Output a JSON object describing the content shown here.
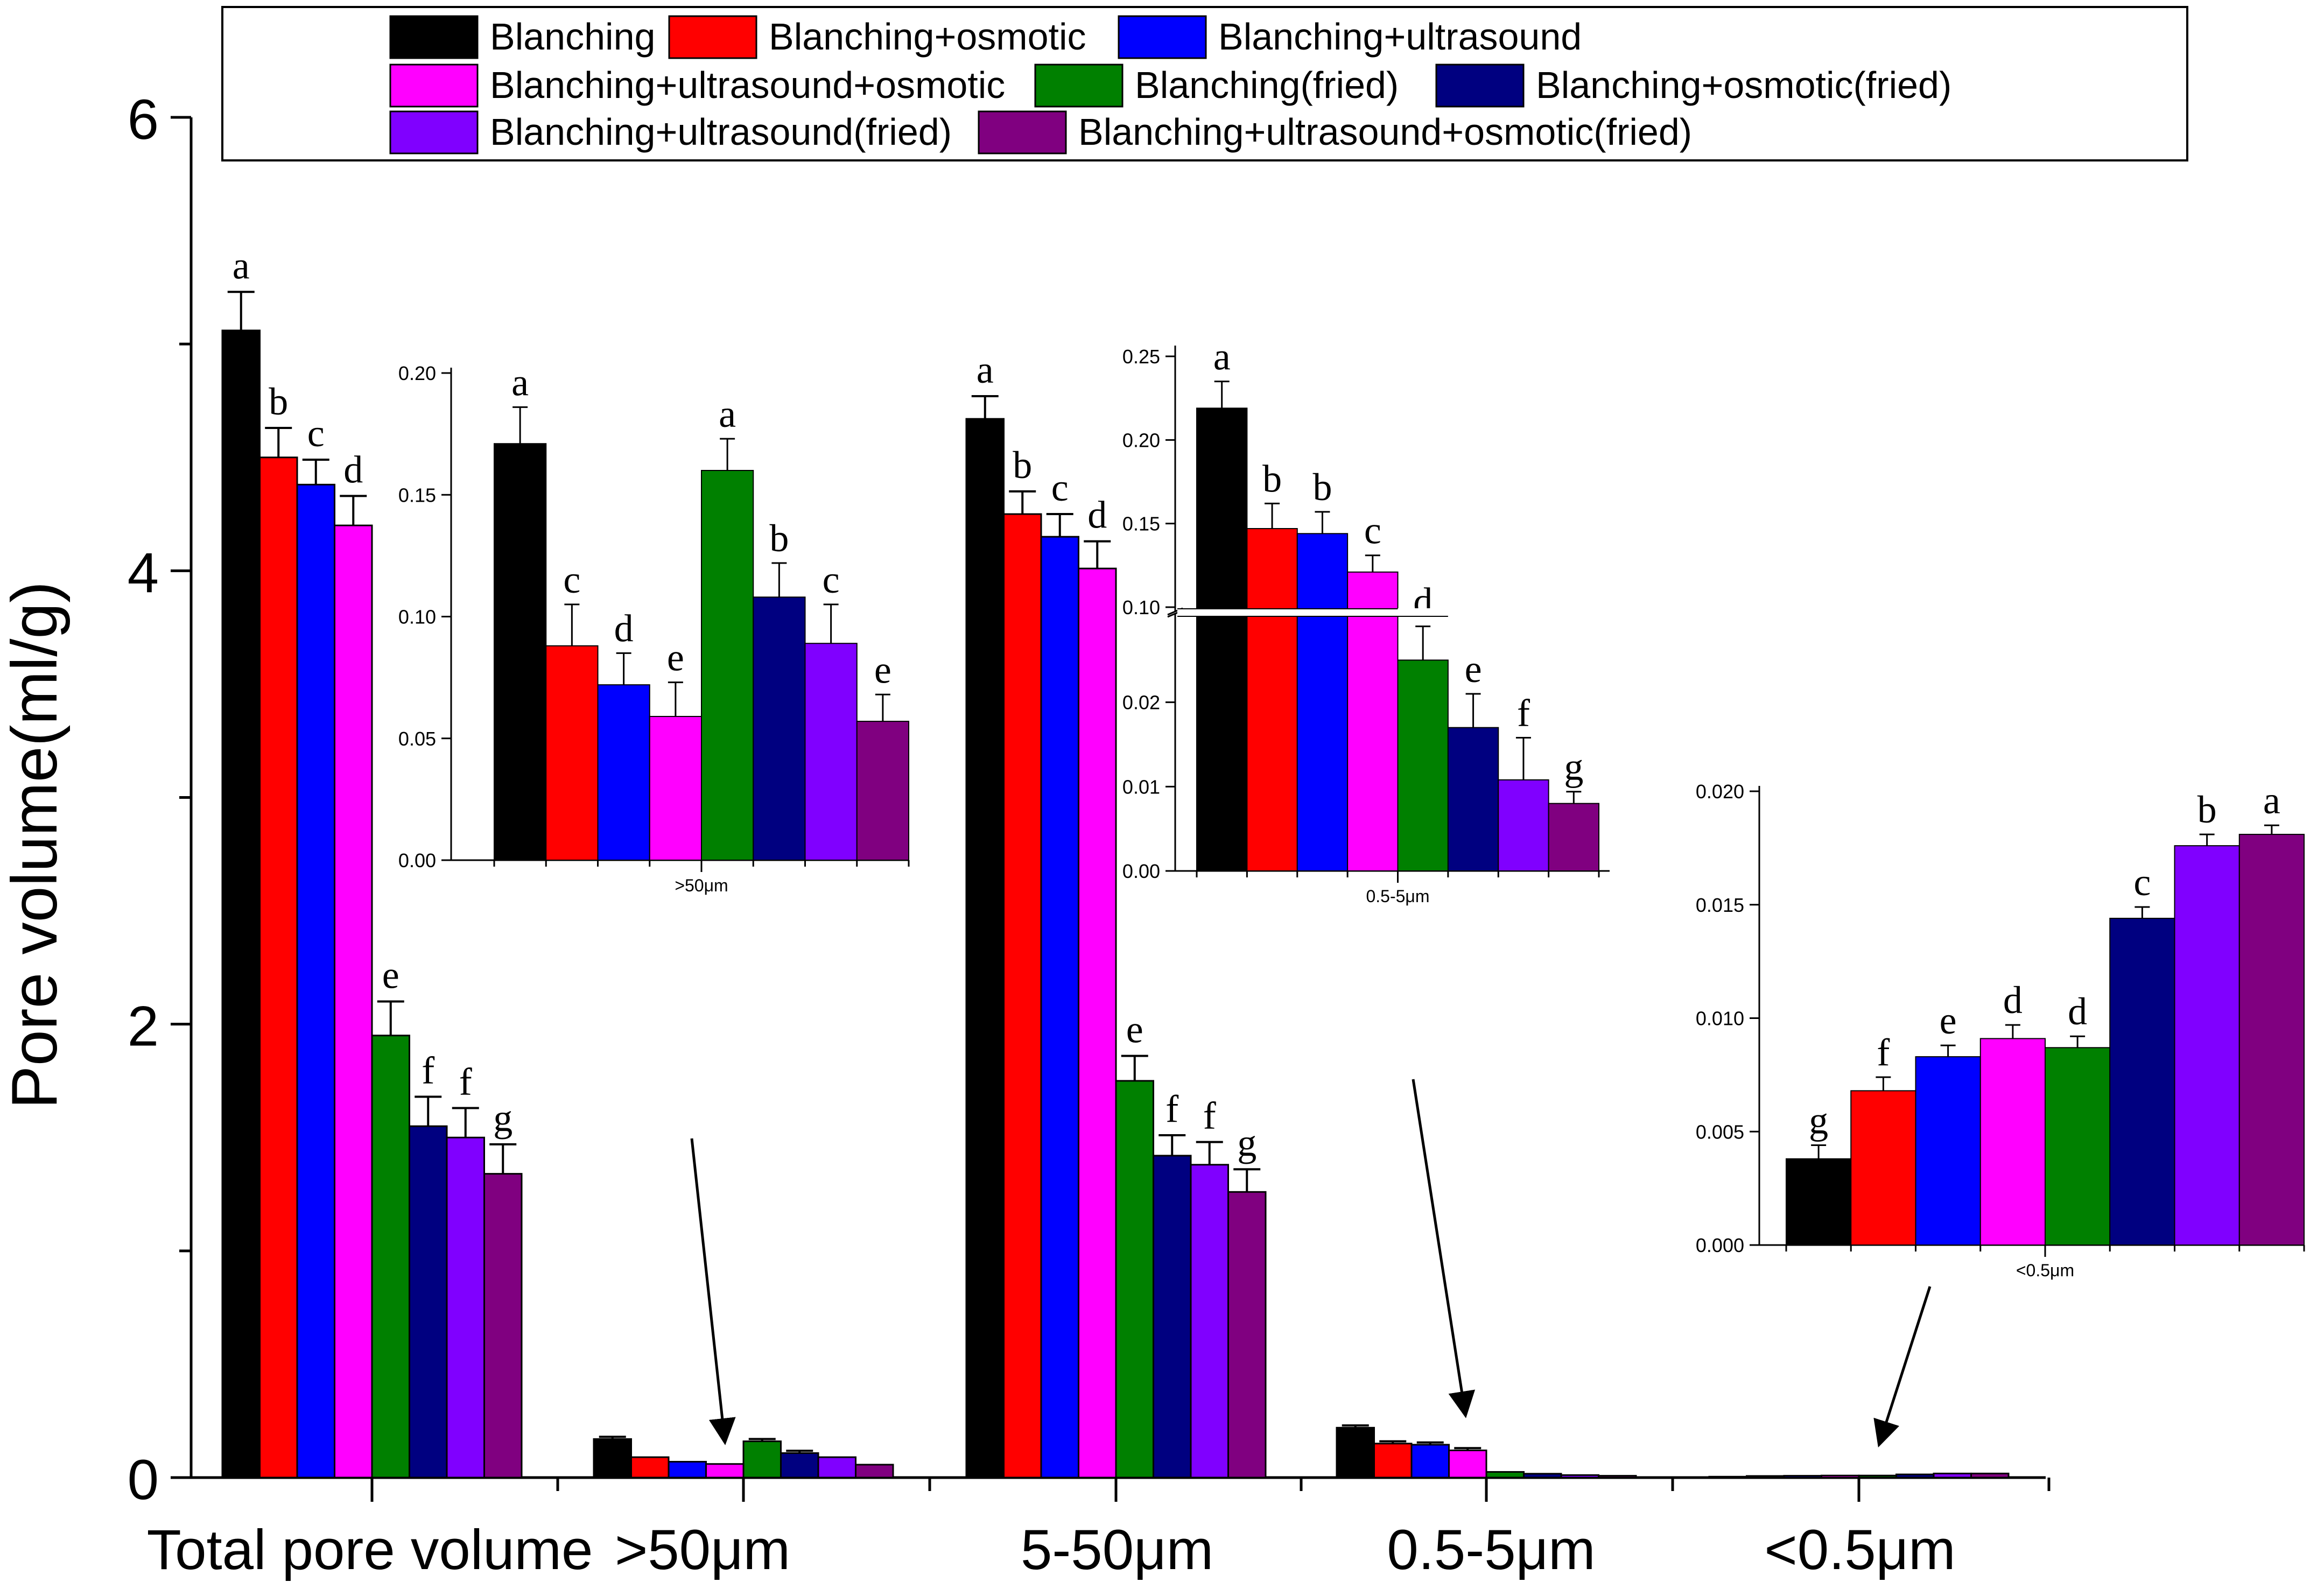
{
  "chart_data": {
    "type": "bar",
    "ylabel": "Pore volume(ml/g)",
    "xlabel": "",
    "ylim": [
      0,
      6
    ],
    "y_ticks": [
      "0",
      "2",
      "4",
      "6"
    ],
    "categories": [
      "Total pore volume",
      ">50μm",
      "5-50μm",
      "0.5-5μm",
      "<0.5μm"
    ],
    "legend": {
      "position": "top",
      "entries": [
        {
          "name": "Blanching",
          "color": "#000000"
        },
        {
          "name": "Blanching+osmotic",
          "color": "#ff0000"
        },
        {
          "name": "Blanching+ultrasound",
          "color": "#0000ff"
        },
        {
          "name": "Blanching+ultrasound+osmotic",
          "color": "#ff00ff"
        },
        {
          "name": "Blanching(fried)",
          "color": "#008000"
        },
        {
          "name": "Blanching+osmotic(fried)",
          "color": "#000080"
        },
        {
          "name": "Blanching+ultrasound(fried)",
          "color": "#8000ff"
        },
        {
          "name": "Blanching+ultrasound+osmotic(fried)",
          "color": "#800080"
        }
      ]
    },
    "series": [
      {
        "name": "Blanching",
        "values": [
          5.06,
          0.17,
          4.67,
          0.22,
          0.004
        ]
      },
      {
        "name": "Blanching+osmotic",
        "values": [
          4.5,
          0.09,
          4.25,
          0.15,
          0.007
        ]
      },
      {
        "name": "Blanching+ultrasound",
        "values": [
          4.38,
          0.07,
          4.15,
          0.145,
          0.008
        ]
      },
      {
        "name": "Blanching+ultrasound+osmotic",
        "values": [
          4.2,
          0.06,
          4.01,
          0.12,
          0.009
        ]
      },
      {
        "name": "Blanching(fried)",
        "values": [
          1.95,
          0.16,
          1.75,
          0.025,
          0.009
        ]
      },
      {
        "name": "Blanching+osmotic(fried)",
        "values": [
          1.55,
          0.108,
          1.42,
          0.017,
          0.014
        ]
      },
      {
        "name": "Blanching+ultrasound(fried)",
        "values": [
          1.5,
          0.09,
          1.38,
          0.011,
          0.018
        ]
      },
      {
        "name": "Blanching+ultrasound+osmotic(fried)",
        "values": [
          1.34,
          0.057,
          1.26,
          0.008,
          0.018
        ]
      }
    ],
    "errors": [
      [
        0.17,
        0.01,
        0.1,
        0.01,
        0.0005
      ],
      [
        0.13,
        0.01,
        0.1,
        0.01,
        0.0005
      ],
      [
        0.11,
        0.01,
        0.1,
        0.01,
        0.0005
      ],
      [
        0.13,
        0.01,
        0.12,
        0.01,
        0.0005
      ],
      [
        0.15,
        0.01,
        0.11,
        0.01,
        0.0005
      ],
      [
        0.13,
        0.01,
        0.09,
        0.01,
        0.0005
      ],
      [
        0.13,
        0.01,
        0.1,
        0.01,
        0.0005
      ],
      [
        0.13,
        0.01,
        0.1,
        0.01,
        0.0005
      ]
    ],
    "significance_letters": {
      "Total pore volume": [
        "a",
        "b",
        "c",
        "d",
        "e",
        "f",
        "f",
        "g"
      ],
      "5-50μm": [
        "a",
        "b",
        "c",
        "d",
        "e",
        "f",
        "f",
        "g"
      ]
    },
    "insets": [
      {
        "name": "inset-over-50",
        "xlabel": ">50μm",
        "ylim": [
          0,
          0.2
        ],
        "y_ticks": [
          "0.00",
          "0.05",
          "0.10",
          "0.15",
          "0.20"
        ],
        "values": [
          0.171,
          0.088,
          0.072,
          0.059,
          0.16,
          0.108,
          0.089,
          0.057
        ],
        "errors": [
          0.015,
          0.017,
          0.013,
          0.014,
          0.013,
          0.014,
          0.016,
          0.011
        ],
        "letters": [
          "a",
          "c",
          "d",
          "e",
          "a",
          "b",
          "c",
          "e"
        ]
      },
      {
        "name": "inset-0.5-5",
        "xlabel": "0.5-5μm",
        "broken_axis": true,
        "upper_ylim": [
          0.1,
          0.25
        ],
        "lower_ylim": [
          0,
          0.03
        ],
        "y_ticks_upper": [
          "0.10",
          "0.15",
          "0.20",
          "0.25"
        ],
        "y_ticks_lower": [
          "0.00",
          "0.01",
          "0.02"
        ],
        "values": [
          0.219,
          0.147,
          0.144,
          0.121,
          0.025,
          0.017,
          0.0108,
          0.008
        ],
        "errors": [
          0.016,
          0.015,
          0.013,
          0.01,
          0.004,
          0.004,
          0.005,
          0.0014
        ],
        "letters": [
          "a",
          "b",
          "b",
          "c",
          "d",
          "e",
          "f",
          "g"
        ]
      },
      {
        "name": "inset-under-0.5",
        "xlabel": "<0.5μm",
        "ylim": [
          0,
          0.02
        ],
        "y_ticks": [
          "0.000",
          "0.005",
          "0.010",
          "0.015",
          "0.020"
        ],
        "values": [
          0.0038,
          0.0068,
          0.0083,
          0.0091,
          0.0087,
          0.0144,
          0.0176,
          0.0181
        ],
        "errors": [
          0.0006,
          0.0006,
          0.0005,
          0.0006,
          0.0005,
          0.0005,
          0.0005,
          0.0004
        ],
        "letters": [
          "g",
          "f",
          "e",
          "d",
          "d",
          "c",
          "b",
          "a"
        ]
      }
    ]
  }
}
